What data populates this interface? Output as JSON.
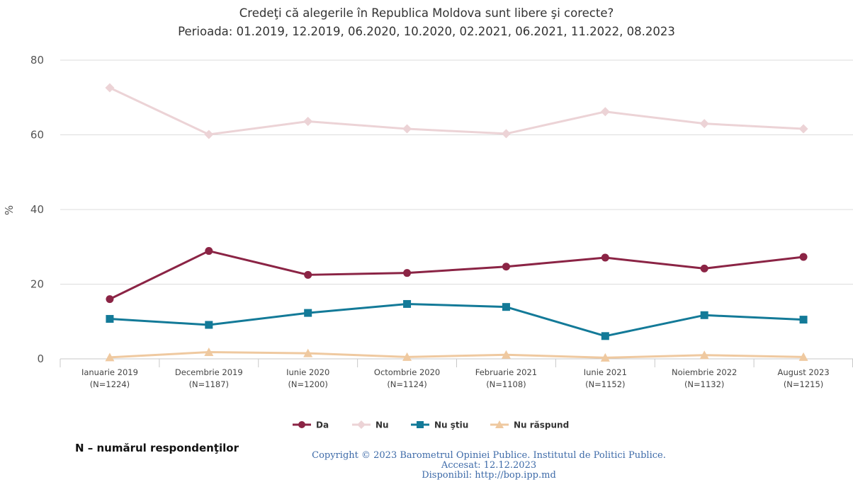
{
  "chart_data": {
    "type": "line",
    "title": "Credeţi că alegerile în Republica Moldova sunt libere şi corecte?",
    "subtitle": "Perioada: 01.2019, 12.2019, 06.2020, 10.2020, 02.2021, 06.2021, 11.2022, 08.2023",
    "ylabel": "%",
    "ylim": [
      0,
      80
    ],
    "yticks": [
      0,
      20,
      40,
      60,
      80
    ],
    "categories": [
      {
        "label": "Ianuarie 2019",
        "n": "(N=1224)"
      },
      {
        "label": "Decembrie 2019",
        "n": "(N=1187)"
      },
      {
        "label": "Iunie 2020",
        "n": "(N=1200)"
      },
      {
        "label": "Octombrie 2020",
        "n": "(N=1124)"
      },
      {
        "label": "Februarie 2021",
        "n": "(N=1108)"
      },
      {
        "label": "Iunie 2021",
        "n": "(N=1152)"
      },
      {
        "label": "Noiembrie 2022",
        "n": "(N=1132)"
      },
      {
        "label": "August 2023",
        "n": "(N=1215)"
      }
    ],
    "series": [
      {
        "name": "Da",
        "color": "#8b2445",
        "marker": "circle",
        "values": [
          16.0,
          28.9,
          22.5,
          23.0,
          24.7,
          27.1,
          24.2,
          27.3
        ]
      },
      {
        "name": "Nu",
        "color": "#ecd3d6",
        "marker": "diamond",
        "values": [
          72.6,
          60.1,
          63.6,
          61.6,
          60.3,
          66.2,
          63.0,
          61.6
        ]
      },
      {
        "name": "Nu ştiu",
        "color": "#137a98",
        "marker": "square",
        "values": [
          10.7,
          9.1,
          12.3,
          14.7,
          13.9,
          6.1,
          11.7,
          10.5
        ]
      },
      {
        "name": "Nu răspund",
        "color": "#efc9a0",
        "marker": "triangle",
        "values": [
          0.4,
          1.8,
          1.5,
          0.5,
          1.1,
          0.3,
          1.0,
          0.5
        ]
      }
    ],
    "grid": true,
    "legend_position": "bottom"
  },
  "footer": {
    "note": "N – numărul respondenţilor",
    "copyright_lines": [
      "Copyright © 2023 Barometrul Opiniei Publice. Institutul de Politici Publice.",
      "Accesat: 12.12.2023",
      "Disponibil: http://bop.ipp.md"
    ]
  }
}
